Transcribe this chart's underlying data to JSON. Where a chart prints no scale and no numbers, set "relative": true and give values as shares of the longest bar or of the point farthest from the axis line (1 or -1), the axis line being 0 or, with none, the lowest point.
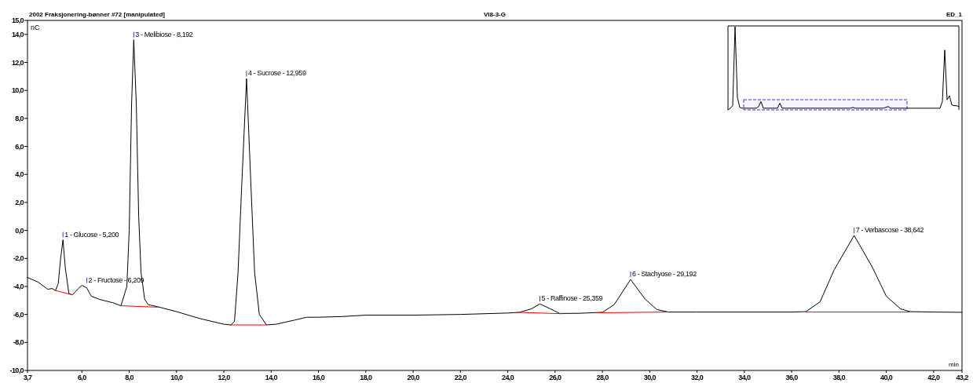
{
  "chart_data": [
    {
      "type": "line",
      "title": "2002 Fraksjonering-bønner #72 [manipulated]",
      "subtitle": "VI8-3-G",
      "xlabel": "min",
      "ylabel": "nC",
      "annotations": [
        {
          "text": "1 - Glucose - 5,200",
          "x": 5.2,
          "y": -0.67
        },
        {
          "text": "2 - Fructose - 6,209",
          "x": 6.209,
          "y": -3.92
        },
        {
          "text": "3 - Melibiose - 8,192",
          "x": 8.192,
          "y": 13.62
        },
        {
          "text": "4 - Sucrose - 12,959",
          "x": 12.959,
          "y": 10.84
        },
        {
          "text": "5 - Raffinose - 25,359",
          "x": 25.359,
          "y": -5.25
        },
        {
          "text": "6 - Stachyose - 29,192",
          "x": 29.192,
          "y": -3.5
        },
        {
          "text": "7 - Verbascose - 38,642",
          "x": 38.642,
          "y": -0.36
        },
        "ED_1"
      ],
      "xlim": [
        3.7,
        43.2
      ],
      "ylim": [
        -10,
        15
      ],
      "xticks": [
        {
          "value": 3.7,
          "label": "3,7"
        },
        {
          "value": 6,
          "label": "6,0"
        },
        {
          "value": 8,
          "label": "8,0"
        },
        {
          "value": 10,
          "label": "10,0"
        },
        {
          "value": 12,
          "label": "12,0"
        },
        {
          "value": 14,
          "label": "14,0"
        },
        {
          "value": 16,
          "label": "16,0"
        },
        {
          "value": 18,
          "label": "18,0"
        },
        {
          "value": 20,
          "label": "20,0"
        },
        {
          "value": 22,
          "label": "22,0"
        },
        {
          "value": 24,
          "label": "24,0"
        },
        {
          "value": 26,
          "label": "26,0"
        },
        {
          "value": 28,
          "label": "28,0"
        },
        {
          "value": 30,
          "label": "30,0"
        },
        {
          "value": 32,
          "label": "32,0"
        },
        {
          "value": 34,
          "label": "34,0"
        },
        {
          "value": 36,
          "label": "36,0"
        },
        {
          "value": 38,
          "label": "38,0"
        },
        {
          "value": 40,
          "label": "40,0"
        },
        {
          "value": 42,
          "label": "42,0"
        },
        {
          "value": 43.2,
          "label": "43,2"
        }
      ],
      "yticks": [
        {
          "value": -10,
          "label": "-10,0"
        },
        {
          "value": -8,
          "label": "-8,0"
        },
        {
          "value": -6,
          "label": "-6,0"
        },
        {
          "value": -4,
          "label": "-4,0"
        },
        {
          "value": -2,
          "label": "-2,0"
        },
        {
          "value": 0,
          "label": "0,0"
        },
        {
          "value": 2,
          "label": "2,0"
        },
        {
          "value": 4,
          "label": "4,0"
        },
        {
          "value": 6,
          "label": "6,0"
        },
        {
          "value": 8,
          "label": "8,0"
        },
        {
          "value": 10,
          "label": "10,0"
        },
        {
          "value": 12,
          "label": "12,0"
        },
        {
          "value": 14,
          "label": "14,0"
        },
        {
          "value": 15,
          "label": "15,0"
        }
      ],
      "grid": false,
      "line_style": "solid",
      "series": [
        {
          "color": "#000000",
          "x": [
            3.7,
            4.16,
            4.55,
            4.75,
            4.88,
            5.0,
            5.1,
            5.2,
            5.3,
            5.45,
            5.6,
            5.85,
            6.0,
            6.2,
            6.4,
            6.75,
            7.3,
            7.65,
            7.9,
            8.0,
            8.1,
            8.192,
            8.3,
            8.4,
            8.5,
            8.65,
            8.8,
            9.2,
            10.0,
            11.0,
            12.0,
            12.3,
            12.45,
            12.6,
            12.75,
            12.959,
            13.15,
            13.3,
            13.5,
            13.8,
            14.2,
            15.0,
            15.5,
            16.0,
            17.0,
            18.0,
            20.0,
            22.0,
            24.0,
            24.5,
            25.0,
            25.359,
            25.8,
            26.2,
            27.0,
            28.0,
            28.5,
            29.192,
            29.8,
            30.3,
            30.8,
            32.0,
            34.0,
            36.0,
            36.6,
            37.2,
            37.8,
            38.642,
            39.4,
            40.0,
            40.6,
            41.0,
            42.0,
            43.2
          ],
          "values": [
            -3.36,
            -3.7,
            -4.2,
            -4.15,
            -4.3,
            -3.8,
            -2.0,
            -0.67,
            -2.7,
            -4.5,
            -4.6,
            -4.15,
            -3.92,
            -4.1,
            -4.7,
            -4.93,
            -5.16,
            -5.38,
            -4.0,
            0,
            9,
            13.62,
            9,
            1,
            -3,
            -4.9,
            -5.3,
            -5.45,
            -5.8,
            -6.3,
            -6.7,
            -6.75,
            -6.5,
            -3,
            3,
            10.84,
            3,
            -3,
            -6.0,
            -6.75,
            -6.7,
            -6.4,
            -6.2,
            -6.2,
            -6.15,
            -6.05,
            -6.05,
            -6.0,
            -5.9,
            -5.85,
            -5.6,
            -5.25,
            -5.6,
            -5.93,
            -5.92,
            -5.85,
            -5.3,
            -3.5,
            -4.9,
            -5.65,
            -5.83,
            -5.83,
            -5.83,
            -5.83,
            -5.8,
            -5.1,
            -2.8,
            -0.36,
            -2.6,
            -4.7,
            -5.6,
            -5.8,
            -5.83,
            -5.85
          ]
        },
        {
          "color": "#ff0000",
          "x": [
            4.9,
            5.6,
            null,
            7.65,
            9.2,
            null,
            12.3,
            13.8,
            null,
            24.4,
            26.3,
            null,
            27.8,
            30.8,
            null,
            36.6,
            41.0
          ],
          "values": [
            -4.3,
            -4.6,
            null,
            -5.38,
            -5.48,
            null,
            -6.75,
            -6.75,
            null,
            -5.85,
            -5.95,
            null,
            -5.88,
            -5.83,
            null,
            -5.83,
            -5.83
          ]
        }
      ]
    },
    {
      "type": "line",
      "relative": true,
      "categories": [
        null,
        null,
        null,
        null,
        null,
        null,
        null,
        null,
        null,
        null,
        null,
        null,
        null,
        null,
        null,
        null,
        null,
        null,
        null,
        null,
        null,
        null,
        null,
        null,
        null,
        null,
        null,
        null,
        null,
        null,
        null,
        null,
        null,
        null,
        null,
        null,
        null,
        null,
        null,
        null,
        null,
        null,
        null,
        null,
        null,
        null,
        null,
        null,
        null,
        null,
        null,
        null,
        null,
        null,
        null,
        null,
        null,
        null,
        null,
        null,
        null,
        null,
        null,
        null,
        null,
        null,
        null,
        null,
        null,
        null,
        null,
        null,
        null,
        null,
        null,
        null,
        null,
        null,
        null,
        null,
        null,
        null,
        null,
        null,
        null,
        null,
        null,
        null,
        null,
        null,
        null,
        null,
        null,
        null,
        null,
        null,
        null,
        null,
        null
      ],
      "series": [
        {
          "color": "#000000",
          "values": [
            0,
            0.02,
            0.05,
            1,
            0.15,
            0.03,
            0.02,
            0.02,
            0.02,
            0.02,
            0.02,
            0.02,
            0.02,
            0.04,
            0.1,
            0.02,
            0.02,
            0.02,
            0.02,
            0.02,
            0.02,
            0.02,
            0.08,
            0.02,
            0.02,
            0.02,
            0.02,
            0.02,
            0.02,
            0.02,
            0.02,
            0.02,
            0.02,
            0.02,
            0.02,
            0.02,
            0.02,
            0.02,
            0.02,
            0.02,
            0.02,
            0.02,
            0.02,
            0.02,
            0.02,
            0.02,
            0.02,
            0.02,
            0.02,
            0.02,
            0.02,
            0.02,
            0.02,
            0.03,
            0.02,
            0.02,
            0.02,
            0.02,
            0.02,
            0.02,
            0.02,
            0.02,
            0.02,
            0.02,
            0.02,
            0.02,
            0.02,
            0.03,
            0.04,
            0.02,
            0.02,
            0.02,
            0.02,
            0.02,
            0.02,
            0.02,
            0.02,
            0.02,
            0.02,
            0.02,
            0.02,
            0.02,
            0.02,
            0.02,
            0.02,
            0.02,
            0.02,
            0.02,
            0.02,
            0.02,
            0.02,
            0.1,
            0.72,
            0.12,
            0.17,
            0.06,
            0.05,
            0.05,
            0.04
          ]
        }
      ]
    }
  ]
}
